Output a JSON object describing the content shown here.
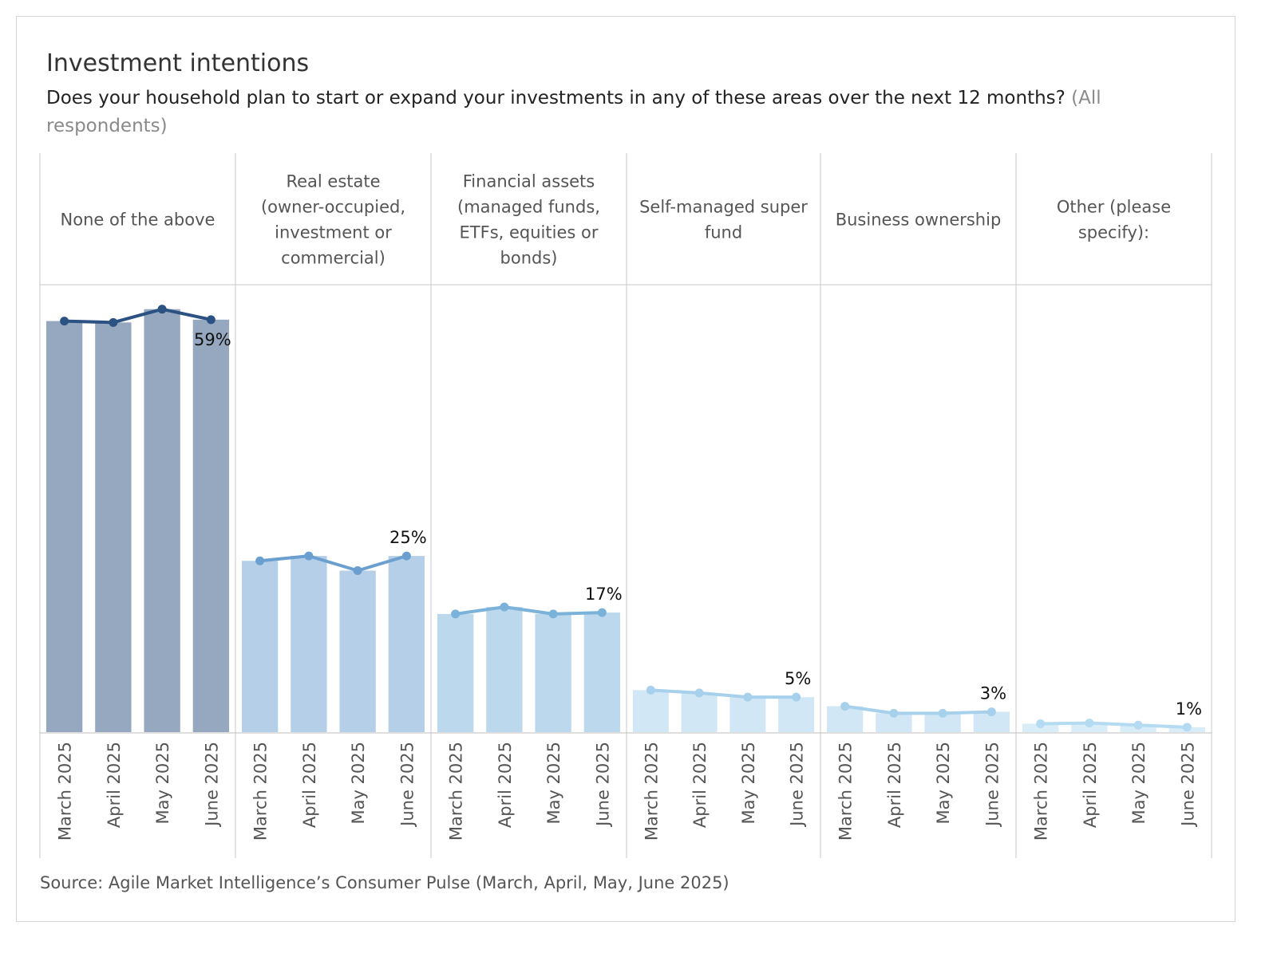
{
  "title": "Investment intentions",
  "subtitle": "Does your household plan to start or expand your investments in any of these areas over the next 12 months?",
  "subtitle_note": "(All respondents)",
  "source": "Source: Agile Market Intelligence’s Consumer Pulse (March, April, May, June 2025)",
  "colors": {
    "none": "#2b5282",
    "real_estate": "#6a9fcf",
    "financial": "#7ab2da",
    "smsf": "#a6d0ec",
    "business": "#a6d0ec",
    "other": "#b4dbf2",
    "divider": "#c8c8c8"
  },
  "chart_data": {
    "type": "bar",
    "title": "Investment intentions",
    "categories": [
      "March 2025",
      "April 2025",
      "May 2025",
      "June 2025"
    ],
    "ylim": [
      0,
      64
    ],
    "grid": false,
    "legend": "none",
    "panels": [
      {
        "name": [
          "None of the above"
        ],
        "values": [
          58.8,
          58.6,
          60.5,
          59.0
        ],
        "label": "59%",
        "color_key": "none"
      },
      {
        "name": [
          "Real estate",
          "(owner-occupied,",
          "investment or",
          "commercial)"
        ],
        "values": [
          24.5,
          25.2,
          23.1,
          25.2
        ],
        "label": "25%",
        "color_key": "real_estate"
      },
      {
        "name": [
          "Financial assets",
          "(managed funds,",
          "ETFs, equities or",
          "bonds)"
        ],
        "values": [
          16.9,
          17.9,
          16.9,
          17.1
        ],
        "label": "17%",
        "color_key": "financial"
      },
      {
        "name": [
          "Self-managed super",
          "fund"
        ],
        "values": [
          6.0,
          5.6,
          5.0,
          5.0
        ],
        "label": "5%",
        "color_key": "smsf"
      },
      {
        "name": [
          "Business ownership"
        ],
        "values": [
          3.7,
          2.7,
          2.7,
          2.9
        ],
        "label": "3%",
        "color_key": "business"
      },
      {
        "name": [
          "Other (please",
          "specify):"
        ],
        "values": [
          1.2,
          1.3,
          1.0,
          0.7
        ],
        "label": "1%",
        "color_key": "other"
      }
    ]
  }
}
